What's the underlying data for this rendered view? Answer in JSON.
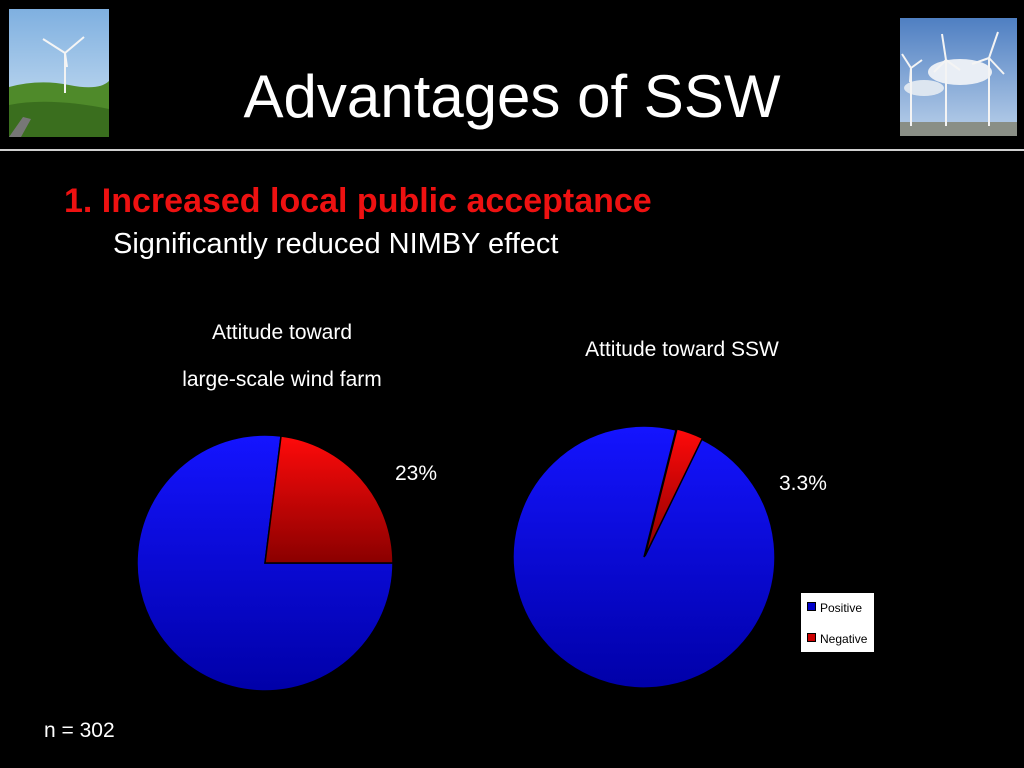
{
  "slide": {
    "title": "Advantages of SSW",
    "heading": "1. Increased local public acceptance",
    "subheading": "Significantly reduced NIMBY effect",
    "footnote": "n = 302"
  },
  "colors": {
    "positive": "#0000ee",
    "negative": "#dd0000",
    "heading": "#ee1111"
  },
  "chart_data": [
    {
      "type": "pie",
      "title_lines": [
        "Attitude toward",
        "large-scale wind farm"
      ],
      "categories": [
        "Positive",
        "Negative"
      ],
      "values": [
        77,
        23
      ],
      "labels": [
        "",
        "23%"
      ]
    },
    {
      "type": "pie",
      "title": "Attitude toward SSW",
      "categories": [
        "Positive",
        "Negative"
      ],
      "values": [
        96.7,
        3.3
      ],
      "labels": [
        "",
        "3.3%"
      ],
      "legend": [
        "Positive",
        "Negative"
      ],
      "legend_position": "bottom-right"
    }
  ]
}
